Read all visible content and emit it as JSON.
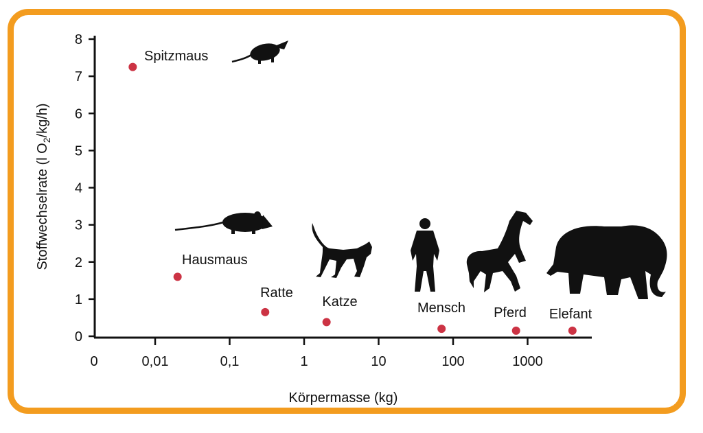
{
  "chart_data": {
    "type": "line",
    "xlabel": "Körpermasse (kg)",
    "ylabel_parts": [
      "Stoffwechselrate (l O",
      "2",
      "/kg/h)"
    ],
    "x_scale": "log",
    "x_ticks": [
      "0",
      "0,01",
      "0,1",
      "1",
      "10",
      "100",
      "1000"
    ],
    "y_ticks": [
      "0",
      "1",
      "2",
      "3",
      "4",
      "5",
      "6",
      "7",
      "8"
    ],
    "ylim": [
      0,
      8
    ],
    "series_color": "#cc3344",
    "points": [
      {
        "label": "Spitzmaus",
        "x": 0.005,
        "y": 7.25,
        "icon": "shrew-icon"
      },
      {
        "label": "Hausmaus",
        "x": 0.02,
        "y": 1.6,
        "icon": "mouse-icon"
      },
      {
        "label": "Ratte",
        "x": 0.3,
        "y": 0.65,
        "icon": ""
      },
      {
        "label": "Katze",
        "x": 2,
        "y": 0.38,
        "icon": "cat-icon"
      },
      {
        "label": "Mensch",
        "x": 70,
        "y": 0.2,
        "icon": "human-icon"
      },
      {
        "label": "Pferd",
        "x": 700,
        "y": 0.15,
        "icon": "horse-icon"
      },
      {
        "label": "Elefant",
        "x": 4000,
        "y": 0.15,
        "icon": "elephant-icon"
      }
    ]
  },
  "colors": {
    "frame": "#f39c1f",
    "curve": "#cc3344",
    "axis": "#111111"
  }
}
